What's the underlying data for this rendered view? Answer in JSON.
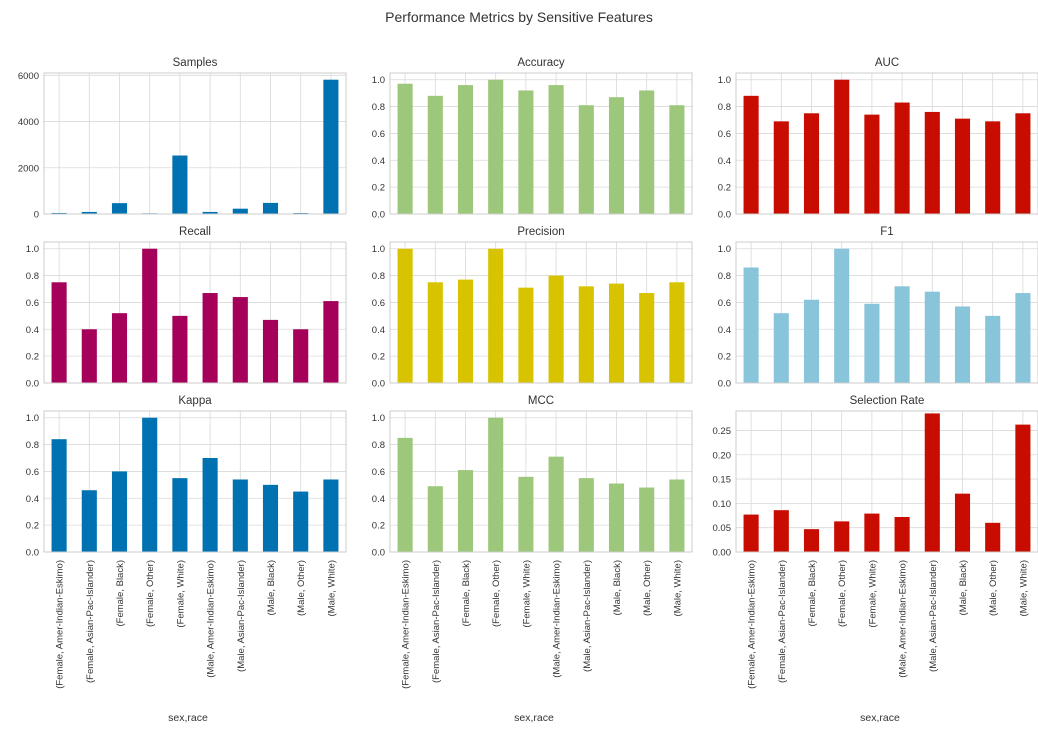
{
  "figure": {
    "title": "Performance Metrics by Sensitive Features",
    "xlabel": "sex,race"
  },
  "chart_data": [
    {
      "type": "bar",
      "title": "Samples",
      "color": "#0072b2",
      "ylim": [
        0,
        6100
      ],
      "yticks": [
        0,
        2000,
        4000,
        6000
      ],
      "categories": [
        "(Female, Amer-Indian-Eskimo)",
        "(Female, Asian-Pac-Islander)",
        "(Female, Black)",
        "(Female, Other)",
        "(Female, White)",
        "(Male, Amer-Indian-Eskimo)",
        "(Male, Asian-Pac-Islander)",
        "(Male, Black)",
        "(Male, Other)",
        "(Male, White)"
      ],
      "values": [
        45,
        90,
        470,
        30,
        2530,
        90,
        230,
        480,
        40,
        5810
      ]
    },
    {
      "type": "bar",
      "title": "Accuracy",
      "color": "#9dc77a",
      "ylim": [
        0,
        1.05
      ],
      "yticks": [
        0.0,
        0.2,
        0.4,
        0.6,
        0.8,
        1.0
      ],
      "categories": [
        "(Female, Amer-Indian-Eskimo)",
        "(Female, Asian-Pac-Islander)",
        "(Female, Black)",
        "(Female, Other)",
        "(Female, White)",
        "(Male, Amer-Indian-Eskimo)",
        "(Male, Asian-Pac-Islander)",
        "(Male, Black)",
        "(Male, Other)",
        "(Male, White)"
      ],
      "values": [
        0.97,
        0.88,
        0.96,
        1.0,
        0.92,
        0.96,
        0.81,
        0.87,
        0.92,
        0.81
      ]
    },
    {
      "type": "bar",
      "title": "AUC",
      "color": "#c90c00",
      "ylim": [
        0,
        1.05
      ],
      "yticks": [
        0.0,
        0.2,
        0.4,
        0.6,
        0.8,
        1.0
      ],
      "categories": [
        "(Female, Amer-Indian-Eskimo)",
        "(Female, Asian-Pac-Islander)",
        "(Female, Black)",
        "(Female, Other)",
        "(Female, White)",
        "(Male, Amer-Indian-Eskimo)",
        "(Male, Asian-Pac-Islander)",
        "(Male, Black)",
        "(Male, Other)",
        "(Male, White)"
      ],
      "values": [
        0.88,
        0.69,
        0.75,
        1.0,
        0.74,
        0.83,
        0.76,
        0.71,
        0.69,
        0.75
      ]
    },
    {
      "type": "bar",
      "title": "Recall",
      "color": "#a5005a",
      "ylim": [
        0,
        1.05
      ],
      "yticks": [
        0.0,
        0.2,
        0.4,
        0.6,
        0.8,
        1.0
      ],
      "categories": [
        "(Female, Amer-Indian-Eskimo)",
        "(Female, Asian-Pac-Islander)",
        "(Female, Black)",
        "(Female, Other)",
        "(Female, White)",
        "(Male, Amer-Indian-Eskimo)",
        "(Male, Asian-Pac-Islander)",
        "(Male, Black)",
        "(Male, Other)",
        "(Male, White)"
      ],
      "values": [
        0.75,
        0.4,
        0.52,
        1.0,
        0.5,
        0.67,
        0.64,
        0.47,
        0.4,
        0.61
      ]
    },
    {
      "type": "bar",
      "title": "Precision",
      "color": "#d8c300",
      "ylim": [
        0,
        1.05
      ],
      "yticks": [
        0.0,
        0.2,
        0.4,
        0.6,
        0.8,
        1.0
      ],
      "categories": [
        "(Female, Amer-Indian-Eskimo)",
        "(Female, Asian-Pac-Islander)",
        "(Female, Black)",
        "(Female, Other)",
        "(Female, White)",
        "(Male, Amer-Indian-Eskimo)",
        "(Male, Asian-Pac-Islander)",
        "(Male, Black)",
        "(Male, Other)",
        "(Male, White)"
      ],
      "values": [
        1.0,
        0.75,
        0.77,
        1.0,
        0.71,
        0.8,
        0.72,
        0.74,
        0.67,
        0.75
      ]
    },
    {
      "type": "bar",
      "title": "F1",
      "color": "#89c5da",
      "ylim": [
        0,
        1.05
      ],
      "yticks": [
        0.0,
        0.2,
        0.4,
        0.6,
        0.8,
        1.0
      ],
      "categories": [
        "(Female, Amer-Indian-Eskimo)",
        "(Female, Asian-Pac-Islander)",
        "(Female, Black)",
        "(Female, Other)",
        "(Female, White)",
        "(Male, Amer-Indian-Eskimo)",
        "(Male, Asian-Pac-Islander)",
        "(Male, Black)",
        "(Male, Other)",
        "(Male, White)"
      ],
      "values": [
        0.86,
        0.52,
        0.62,
        1.0,
        0.59,
        0.72,
        0.68,
        0.57,
        0.5,
        0.67
      ]
    },
    {
      "type": "bar",
      "title": "Kappa",
      "color": "#0072b2",
      "ylim": [
        0,
        1.05
      ],
      "yticks": [
        0.0,
        0.2,
        0.4,
        0.6,
        0.8,
        1.0
      ],
      "categories": [
        "(Female, Amer-Indian-Eskimo)",
        "(Female, Asian-Pac-Islander)",
        "(Female, Black)",
        "(Female, Other)",
        "(Female, White)",
        "(Male, Amer-Indian-Eskimo)",
        "(Male, Asian-Pac-Islander)",
        "(Male, Black)",
        "(Male, Other)",
        "(Male, White)"
      ],
      "values": [
        0.84,
        0.46,
        0.6,
        1.0,
        0.55,
        0.7,
        0.54,
        0.5,
        0.45,
        0.54
      ]
    },
    {
      "type": "bar",
      "title": "MCC",
      "color": "#9dc77a",
      "ylim": [
        0,
        1.05
      ],
      "yticks": [
        0.0,
        0.2,
        0.4,
        0.6,
        0.8,
        1.0
      ],
      "categories": [
        "(Female, Amer-Indian-Eskimo)",
        "(Female, Asian-Pac-Islander)",
        "(Female, Black)",
        "(Female, Other)",
        "(Female, White)",
        "(Male, Amer-Indian-Eskimo)",
        "(Male, Asian-Pac-Islander)",
        "(Male, Black)",
        "(Male, Other)",
        "(Male, White)"
      ],
      "values": [
        0.85,
        0.49,
        0.61,
        1.0,
        0.56,
        0.71,
        0.55,
        0.51,
        0.48,
        0.54
      ]
    },
    {
      "type": "bar",
      "title": "Selection Rate",
      "color": "#c90c00",
      "ylim": [
        0,
        0.29
      ],
      "yticks": [
        0.0,
        0.05,
        0.1,
        0.15,
        0.2,
        0.25
      ],
      "categories": [
        "(Female, Amer-Indian-Eskimo)",
        "(Female, Asian-Pac-Islander)",
        "(Female, Black)",
        "(Female, Other)",
        "(Female, White)",
        "(Male, Amer-Indian-Eskimo)",
        "(Male, Asian-Pac-Islander)",
        "(Male, Black)",
        "(Male, Other)",
        "(Male, White)"
      ],
      "values": [
        0.077,
        0.086,
        0.047,
        0.063,
        0.079,
        0.072,
        0.285,
        0.12,
        0.06,
        0.262
      ]
    }
  ]
}
